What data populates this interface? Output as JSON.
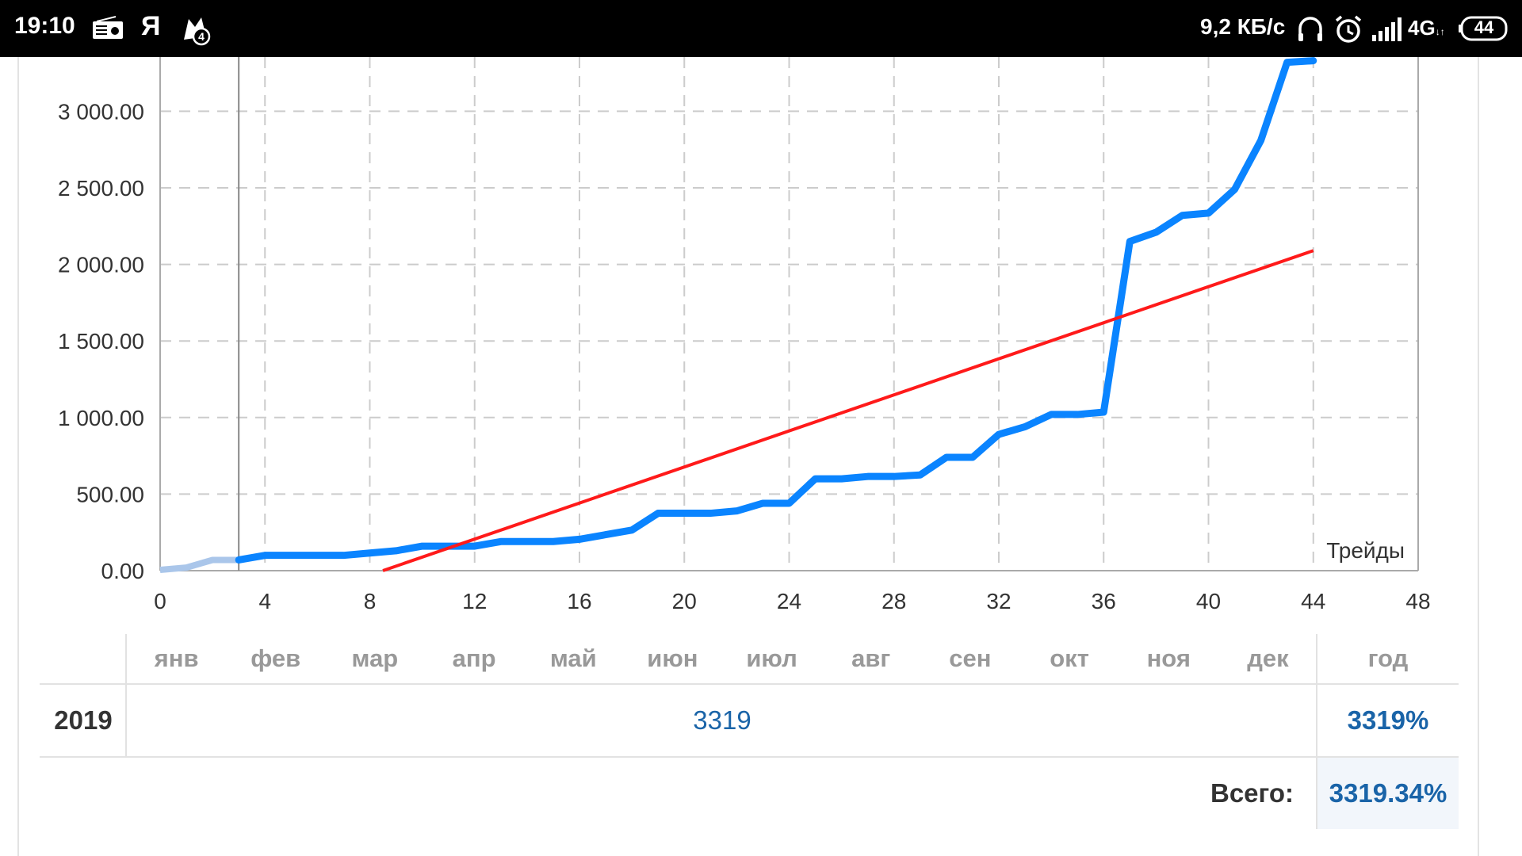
{
  "status_bar": {
    "time": "19:10",
    "yandex_glyph": "Я",
    "network_speed": "9,2 КБ/с",
    "network_type": "4G",
    "network_arrows": "↓↑",
    "battery_level": "44",
    "icons": [
      "radio-icon",
      "yandex-icon",
      "notification-app-icon",
      "headset-icon",
      "alarm-icon",
      "signal-icon",
      "battery-icon"
    ]
  },
  "chart_data": {
    "type": "line",
    "x_axis_label": "Трейды",
    "x_ticks": [
      "0",
      "4",
      "8",
      "12",
      "16",
      "20",
      "24",
      "28",
      "32",
      "36",
      "40",
      "44",
      "48"
    ],
    "y_ticks": [
      "0.00",
      "500.00",
      "1 000.00",
      "1 500.00",
      "2 000.00",
      "2 500.00",
      "3 000.00"
    ],
    "xlim": [
      0,
      48
    ],
    "ylim": [
      0,
      3300
    ],
    "grid": true,
    "highlight_x": 3,
    "colors": {
      "equity": "#0a84ff",
      "equity_faded": "#aac6ea",
      "trend": "#ff1a1a",
      "grid": "#cccccc"
    },
    "series": [
      {
        "x": [
          0,
          1,
          2,
          3,
          4,
          5,
          6,
          7,
          8,
          9,
          10,
          11,
          12,
          13,
          14,
          15,
          16,
          17,
          18,
          19,
          20,
          21,
          22,
          23,
          24,
          25,
          26,
          27,
          28,
          29,
          30,
          31,
          32,
          33,
          34,
          35,
          36,
          37,
          38,
          39,
          40,
          41,
          42,
          43,
          44
        ],
        "values": [
          5,
          20,
          70,
          70,
          100,
          100,
          100,
          100,
          115,
          130,
          160,
          160,
          160,
          190,
          190,
          190,
          205,
          235,
          265,
          375,
          375,
          375,
          390,
          440,
          440,
          600,
          600,
          615,
          615,
          625,
          740,
          740,
          890,
          940,
          1020,
          1020,
          1035,
          2150,
          2210,
          2320,
          2335,
          2490,
          2810,
          3320,
          3330
        ]
      },
      {
        "x": [
          8.5,
          44
        ],
        "values": [
          0,
          2090
        ]
      }
    ]
  },
  "returns_table": {
    "months": [
      "янв",
      "фев",
      "мар",
      "апр",
      "май",
      "июн",
      "июл",
      "авг",
      "сен",
      "окт",
      "ноя",
      "дек"
    ],
    "year_header": "год",
    "row": {
      "year": "2019",
      "months_value": "3319",
      "year_value": "3319%"
    },
    "total_label": "Всего:",
    "total_value": "3319.34%"
  }
}
